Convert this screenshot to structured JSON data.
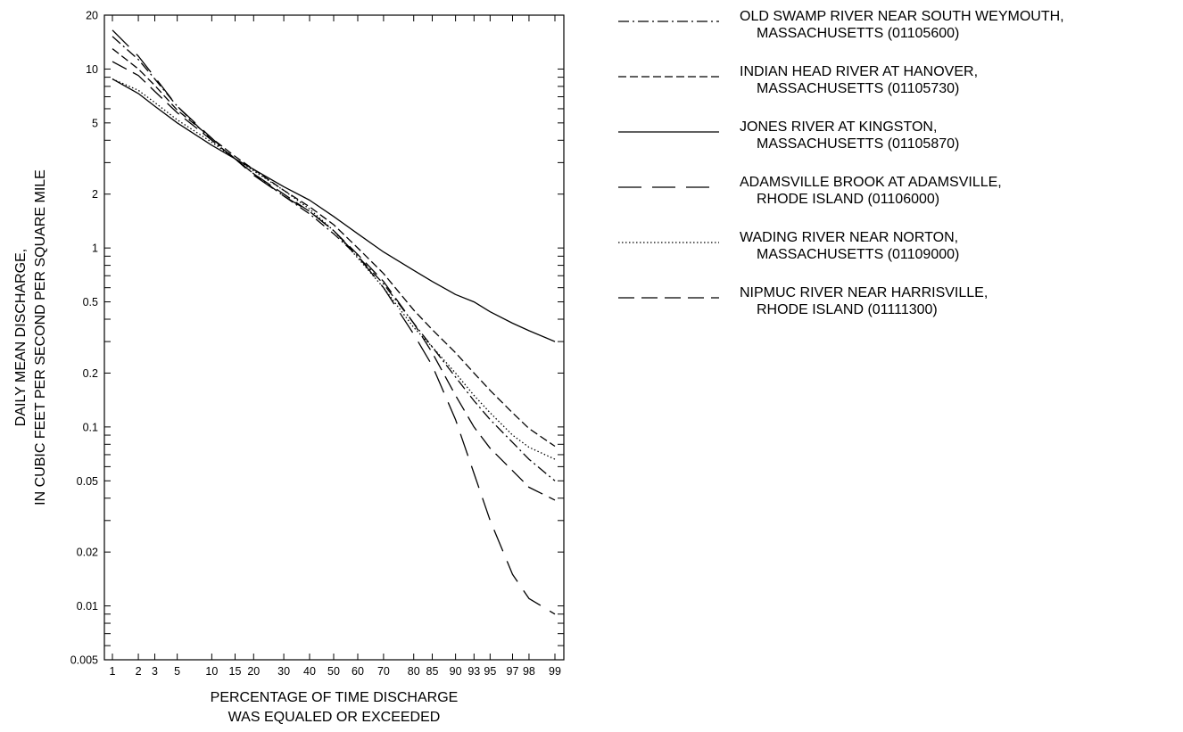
{
  "chart_data": {
    "type": "line",
    "xlabel_lines": [
      "PERCENTAGE OF TIME DISCHARGE",
      "WAS EQUALED OR EXCEEDED"
    ],
    "ylabel_lines": [
      "DAILY MEAN DISCHARGE,",
      "IN CUBIC FEET PER SECOND PER SQUARE MILE"
    ],
    "x_scale": "normal-probability",
    "y_scale": "log",
    "xlim": [
      1,
      99
    ],
    "ylim": [
      0.005,
      20
    ],
    "x_ticks": [
      1,
      2,
      3,
      5,
      10,
      15,
      20,
      30,
      40,
      50,
      60,
      70,
      80,
      85,
      90,
      93,
      95,
      97,
      98,
      99
    ],
    "x_tick_labels": [
      "1",
      "2",
      "3",
      "5",
      "10",
      "15",
      "20",
      "30",
      "40",
      "50",
      "60",
      "70",
      "80",
      "85",
      "90",
      "93",
      "95",
      "97",
      "98",
      "99"
    ],
    "y_ticks": [
      0.005,
      0.01,
      0.02,
      0.05,
      0.1,
      0.2,
      0.5,
      1,
      2,
      5,
      10,
      20
    ],
    "y_tick_labels": [
      "0.005",
      "0.01",
      "0.02",
      "0.05",
      "0.1",
      "0.2",
      "0.5",
      "1",
      "2",
      "5",
      "10",
      "20"
    ],
    "grid": false,
    "legend_position": "right",
    "x": [
      1,
      2,
      3,
      5,
      10,
      15,
      20,
      30,
      40,
      50,
      60,
      70,
      80,
      85,
      90,
      93,
      95,
      97,
      98,
      99
    ],
    "series": [
      {
        "label_lines": [
          "OLD SWAMP RIVER NEAR SOUTH WEYMOUTH,",
          "MASSACHUSETTS (01105600)"
        ],
        "dash": "dash-dot",
        "values": [
          15.2,
          11.3,
          8.8,
          6.2,
          4.0,
          3.15,
          2.6,
          1.95,
          1.55,
          1.2,
          0.9,
          0.63,
          0.38,
          0.28,
          0.19,
          0.14,
          0.11,
          0.082,
          0.066,
          0.05
        ]
      },
      {
        "label_lines": [
          "INDIAN HEAD RIVER AT HANOVER,",
          "MASSACHUSETTS (01105730)"
        ],
        "dash": "short-dash",
        "values": [
          13.0,
          10.0,
          8.1,
          5.9,
          4.1,
          3.25,
          2.75,
          2.1,
          1.7,
          1.35,
          1.0,
          0.72,
          0.45,
          0.35,
          0.26,
          0.2,
          0.16,
          0.12,
          0.098,
          0.078
        ]
      },
      {
        "label_lines": [
          "JONES RIVER AT KINGSTON,",
          "MASSACHUSETTS (01105870)"
        ],
        "dash": "solid",
        "values": [
          8.8,
          7.3,
          6.2,
          5.0,
          3.75,
          3.15,
          2.75,
          2.2,
          1.85,
          1.5,
          1.2,
          0.95,
          0.75,
          0.65,
          0.55,
          0.5,
          0.44,
          0.38,
          0.345,
          0.3
        ]
      },
      {
        "label_lines": [
          "ADAMSVILLE BROOK AT ADAMSVILLE,",
          "RHODE ISLAND (01106000)"
        ],
        "dash": "long-dash",
        "values": [
          16.5,
          11.8,
          9.0,
          6.2,
          4.1,
          3.15,
          2.55,
          1.95,
          1.6,
          1.25,
          0.9,
          0.6,
          0.33,
          0.22,
          0.11,
          0.055,
          0.03,
          0.015,
          0.011,
          0.009
        ]
      },
      {
        "label_lines": [
          "WADING RIVER NEAR NORTON,",
          "MASSACHUSETTS (01109000)"
        ],
        "dash": "dotted",
        "values": [
          8.8,
          7.6,
          6.5,
          5.2,
          3.9,
          3.15,
          2.7,
          2.1,
          1.65,
          1.25,
          0.88,
          0.6,
          0.36,
          0.28,
          0.2,
          0.15,
          0.12,
          0.09,
          0.077,
          0.066
        ]
      },
      {
        "label_lines": [
          "NIPMUC RIVER NEAR HARRISVILLE,",
          "RHODE ISLAND (01111300)"
        ],
        "dash": "medium-dash",
        "values": [
          11.0,
          9.2,
          7.5,
          5.7,
          4.0,
          3.15,
          2.6,
          2.0,
          1.6,
          1.25,
          0.92,
          0.65,
          0.38,
          0.26,
          0.15,
          0.1,
          0.076,
          0.057,
          0.046,
          0.039
        ]
      }
    ]
  }
}
